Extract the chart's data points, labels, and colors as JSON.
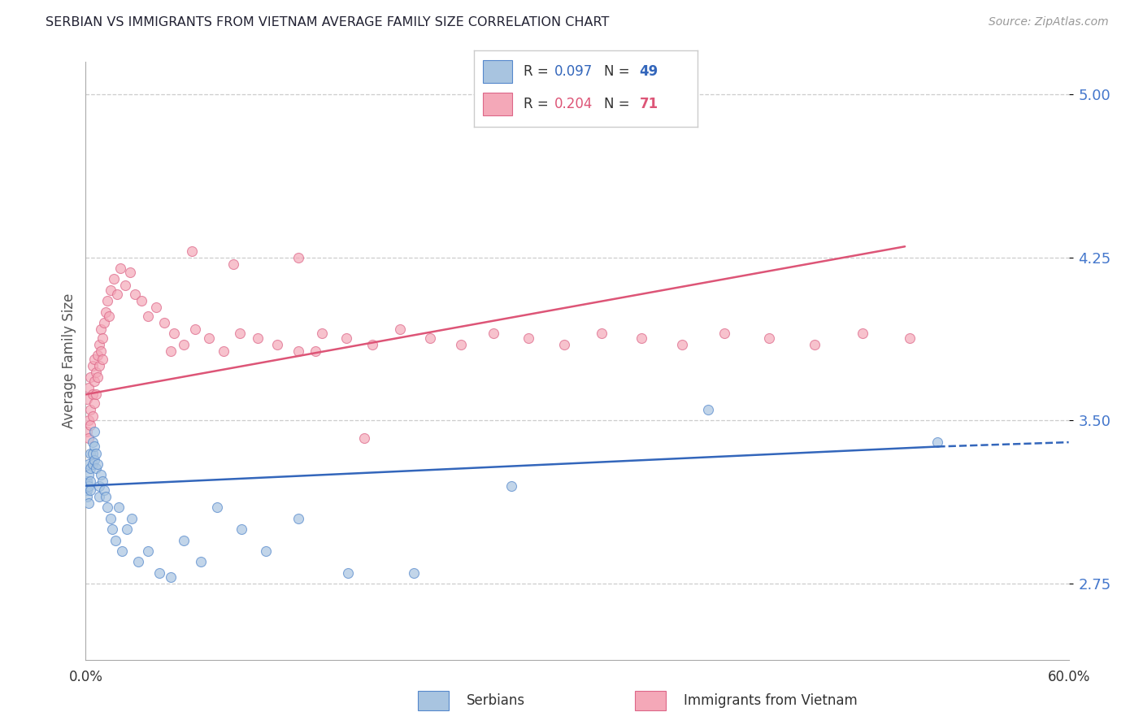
{
  "title": "SERBIAN VS IMMIGRANTS FROM VIETNAM AVERAGE FAMILY SIZE CORRELATION CHART",
  "source": "Source: ZipAtlas.com",
  "ylabel": "Average Family Size",
  "xlim": [
    0.0,
    0.6
  ],
  "ylim": [
    2.4,
    5.15
  ],
  "yticks": [
    2.75,
    3.5,
    4.25,
    5.0
  ],
  "legend_r1": "0.097",
  "legend_n1": "49",
  "legend_r2": "0.204",
  "legend_n2": "71",
  "serbian_color": "#a8c4e0",
  "vietnam_color": "#f4a8b8",
  "serbian_edge": "#5588cc",
  "vietnam_edge": "#dd6688",
  "line_serbian": "#3366bb",
  "line_vietnam": "#dd5577",
  "legend_label1": "Serbians",
  "legend_label2": "Immigrants from Vietnam",
  "background_color": "#ffffff",
  "grid_color": "#cccccc",
  "title_color": "#222233",
  "source_color": "#999999",
  "serbian_x": [
    0.001,
    0.001,
    0.001,
    0.002,
    0.002,
    0.002,
    0.002,
    0.003,
    0.003,
    0.003,
    0.003,
    0.004,
    0.004,
    0.004,
    0.005,
    0.005,
    0.005,
    0.006,
    0.006,
    0.007,
    0.008,
    0.008,
    0.009,
    0.01,
    0.011,
    0.012,
    0.013,
    0.015,
    0.016,
    0.018,
    0.02,
    0.022,
    0.025,
    0.028,
    0.032,
    0.038,
    0.045,
    0.052,
    0.06,
    0.07,
    0.08,
    0.095,
    0.11,
    0.13,
    0.16,
    0.2,
    0.26,
    0.38,
    0.52
  ],
  "serbian_y": [
    3.22,
    3.18,
    3.15,
    3.3,
    3.25,
    3.2,
    3.12,
    3.35,
    3.28,
    3.22,
    3.18,
    3.4,
    3.35,
    3.3,
    3.45,
    3.38,
    3.32,
    3.35,
    3.28,
    3.3,
    3.2,
    3.15,
    3.25,
    3.22,
    3.18,
    3.15,
    3.1,
    3.05,
    3.0,
    2.95,
    3.1,
    2.9,
    3.0,
    3.05,
    2.85,
    2.9,
    2.8,
    2.78,
    2.95,
    2.85,
    3.1,
    3.0,
    2.9,
    3.05,
    2.8,
    2.8,
    3.2,
    3.55,
    3.4
  ],
  "vietnam_x": [
    0.001,
    0.001,
    0.002,
    0.002,
    0.002,
    0.003,
    0.003,
    0.003,
    0.004,
    0.004,
    0.004,
    0.005,
    0.005,
    0.005,
    0.006,
    0.006,
    0.007,
    0.007,
    0.008,
    0.008,
    0.009,
    0.009,
    0.01,
    0.01,
    0.011,
    0.012,
    0.013,
    0.014,
    0.015,
    0.017,
    0.019,
    0.021,
    0.024,
    0.027,
    0.03,
    0.034,
    0.038,
    0.043,
    0.048,
    0.054,
    0.06,
    0.067,
    0.075,
    0.084,
    0.094,
    0.105,
    0.117,
    0.13,
    0.144,
    0.159,
    0.175,
    0.192,
    0.21,
    0.229,
    0.249,
    0.27,
    0.292,
    0.315,
    0.339,
    0.364,
    0.39,
    0.417,
    0.445,
    0.474,
    0.503,
    0.13,
    0.065,
    0.09,
    0.052,
    0.14,
    0.17
  ],
  "vietnam_y": [
    3.45,
    3.6,
    3.5,
    3.65,
    3.42,
    3.55,
    3.7,
    3.48,
    3.62,
    3.75,
    3.52,
    3.68,
    3.78,
    3.58,
    3.72,
    3.62,
    3.8,
    3.7,
    3.85,
    3.75,
    3.92,
    3.82,
    3.88,
    3.78,
    3.95,
    4.0,
    4.05,
    3.98,
    4.1,
    4.15,
    4.08,
    4.2,
    4.12,
    4.18,
    4.08,
    4.05,
    3.98,
    4.02,
    3.95,
    3.9,
    3.85,
    3.92,
    3.88,
    3.82,
    3.9,
    3.88,
    3.85,
    3.82,
    3.9,
    3.88,
    3.85,
    3.92,
    3.88,
    3.85,
    3.9,
    3.88,
    3.85,
    3.9,
    3.88,
    3.85,
    3.9,
    3.88,
    3.85,
    3.9,
    3.88,
    4.25,
    4.28,
    4.22,
    3.82,
    3.82,
    3.42
  ],
  "marker_size": 75,
  "marker_alpha": 0.7,
  "trend_serbian_x0": 0.0,
  "trend_serbian_y0": 3.2,
  "trend_serbian_x1": 0.52,
  "trend_serbian_y1": 3.38,
  "trend_serbian_dash_x1": 0.6,
  "trend_serbian_dash_y1": 3.4,
  "trend_vietnam_x0": 0.0,
  "trend_vietnam_y0": 3.62,
  "trend_vietnam_x1": 0.5,
  "trend_vietnam_y1": 4.3
}
